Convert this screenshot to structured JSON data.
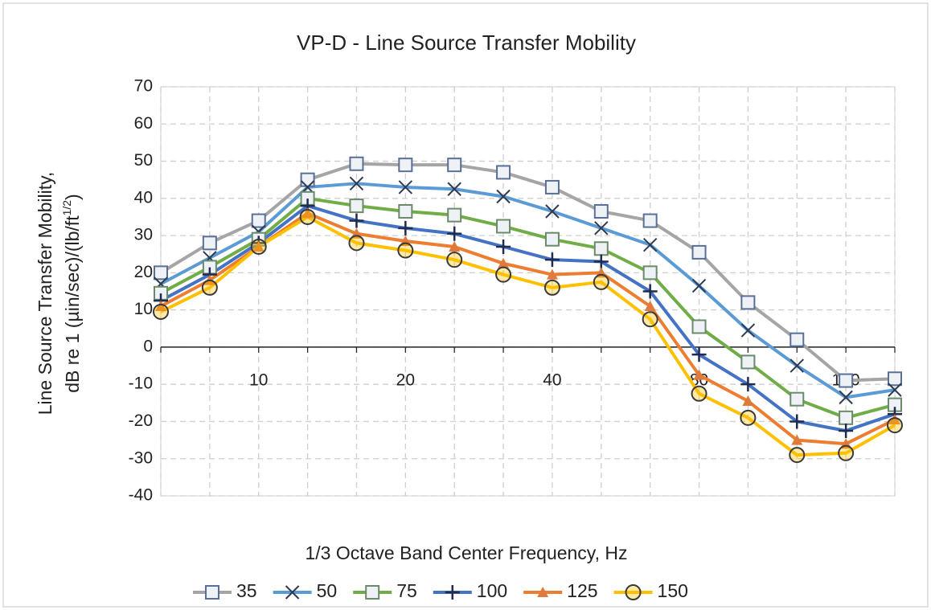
{
  "chart_data": {
    "type": "line",
    "title": "VP-D - Line Source Transfer Mobility",
    "x_label": "1/3 Octave Band Center Frequency, Hz",
    "y_label": {
      "line1": "Line Source Transfer Mobility,",
      "line2": "dB re 1 (µin/sec)/(lb/ft",
      "superscript": "1/2",
      "close": ")"
    },
    "categories": [
      null,
      null,
      "10",
      null,
      null,
      "20",
      null,
      null,
      "40",
      null,
      null,
      "80",
      null,
      null,
      "160",
      null
    ],
    "ylim": [
      -40,
      70
    ],
    "yticks": [
      -40,
      -30,
      -20,
      -10,
      0,
      10,
      20,
      30,
      40,
      50,
      60,
      70
    ],
    "grid": true,
    "legend": "bottom",
    "series": [
      {
        "name": "35",
        "color": "#a5a5a5",
        "marker": "square",
        "marker_color": "#5a6f96",
        "values": [
          20,
          28,
          34,
          45,
          49.3,
          49,
          49,
          47,
          43,
          36.5,
          34,
          25.5,
          12,
          2,
          -9,
          -8.5
        ]
      },
      {
        "name": "50",
        "color": "#5b9bd5",
        "marker": "x",
        "marker_color": "#2f3b52",
        "values": [
          17,
          24,
          31,
          43,
          44,
          43,
          42.5,
          40.5,
          36.5,
          32,
          27.5,
          16.5,
          4.5,
          -5,
          -13.5,
          -11.5
        ]
      },
      {
        "name": "75",
        "color": "#70ad47",
        "marker": "square",
        "marker_color": "#6a8a6a",
        "values": [
          14.5,
          21.5,
          29,
          40,
          38,
          36.5,
          35.5,
          32.5,
          29,
          26.5,
          20,
          5.5,
          -4,
          -14,
          -19,
          -15.5
        ]
      },
      {
        "name": "100",
        "color": "#4472c4",
        "marker": "plus",
        "marker_color": "#1f2b4f",
        "values": [
          12.5,
          19.5,
          28,
          38,
          34,
          32,
          30.5,
          27,
          23.5,
          23,
          15,
          -2,
          -10,
          -20,
          -22.5,
          -18
        ]
      },
      {
        "name": "125",
        "color": "#ed7d31",
        "marker": "triangle",
        "marker_color": "#e07a3a",
        "values": [
          11,
          18,
          27,
          36,
          30.5,
          28.5,
          27,
          22.5,
          19.5,
          20,
          11,
          -7.5,
          -14.5,
          -25,
          -26,
          -19.5
        ]
      },
      {
        "name": "150",
        "color": "#ffc000",
        "marker": "circle",
        "marker_color": "#3a3a3a",
        "values": [
          9.5,
          16,
          27,
          35,
          28,
          26,
          23.5,
          19.5,
          16,
          17.5,
          7.5,
          -12.5,
          -19,
          -29,
          -28.5,
          -21
        ]
      }
    ]
  }
}
